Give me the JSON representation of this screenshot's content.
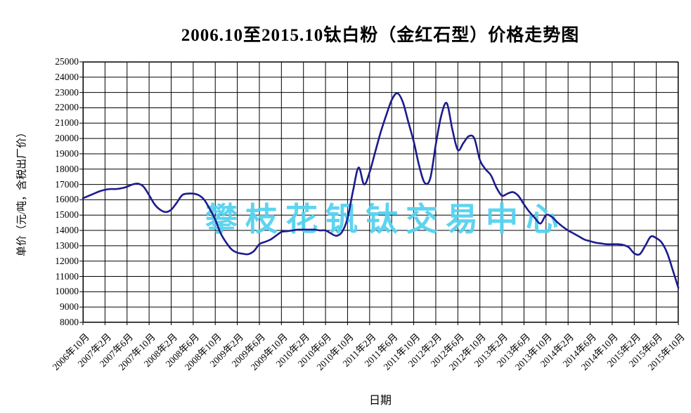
{
  "title": "2006.10至2015.10钛白粉（金红石型）价格走势图",
  "watermark_text": "攀枝花钒钛交易中心",
  "colors": {
    "line": "#1b1b8e",
    "grid": "#000000",
    "watermark": "#55d2f0",
    "background": "#ffffff",
    "text": "#000000"
  },
  "chart_data": {
    "type": "line",
    "title": "2006.10至2015.10钛白粉（金红石型）价格走势图",
    "xlabel": "日期",
    "ylabel": "单价（元/吨，含税出厂价）",
    "ylim": [
      8000,
      25000
    ],
    "y_tick_step": 1000,
    "y_tick_labels": [
      "25000",
      "24000",
      "23000",
      "22000",
      "21000",
      "20000",
      "19000",
      "18000",
      "17000",
      "16000",
      "15000",
      "14000",
      "13000",
      "12000",
      "11000",
      "10000",
      "9000",
      "8000"
    ],
    "x_tick_labels": [
      "2006年10月",
      "2007年2月",
      "2007年6月",
      "2007年10月",
      "2008年2月",
      "2008年6月",
      "2008年10月",
      "2009年2月",
      "2009年6月",
      "2009年10月",
      "2010年2月",
      "2010年6月",
      "2010年10月",
      "2011年2月",
      "2011年6月",
      "2011年10月",
      "2012年2月",
      "2012年6月",
      "2012年10月",
      "2013年2月",
      "2013年6月",
      "2013年10月",
      "2014年2月",
      "2014年6月",
      "2014年10月",
      "2015年2月",
      "2015年6月",
      "2015年10月"
    ],
    "x_tick_interval_months": 4,
    "grid": true,
    "legend_position": "none",
    "series": [
      {
        "name": "钛白粉（金红石型）价格",
        "start_month": "2006-10",
        "end_month": "2015-10",
        "resolution": "monthly",
        "values": [
          16100,
          16250,
          16400,
          16550,
          16650,
          16700,
          16700,
          16750,
          16850,
          17000,
          17050,
          16850,
          16300,
          15700,
          15350,
          15200,
          15350,
          15800,
          16300,
          16400,
          16400,
          16300,
          16000,
          15400,
          14700,
          13800,
          13200,
          12750,
          12550,
          12480,
          12450,
          12650,
          13100,
          13250,
          13400,
          13650,
          13900,
          13950,
          14000,
          14050,
          14050,
          14050,
          14050,
          14000,
          14000,
          13800,
          13650,
          13900,
          14800,
          16600,
          18100,
          17000,
          17800,
          19100,
          20400,
          21500,
          22500,
          22950,
          22400,
          21100,
          19800,
          18200,
          17100,
          17400,
          19600,
          21500,
          22300,
          20600,
          19250,
          19700,
          20150,
          20000,
          18600,
          18000,
          17600,
          16800,
          16270,
          16400,
          16500,
          16250,
          15700,
          15200,
          14800,
          14450,
          15000,
          14900,
          14550,
          14250,
          14000,
          13800,
          13600,
          13400,
          13300,
          13200,
          13150,
          13100,
          13100,
          13100,
          13050,
          12900,
          12500,
          12450,
          13000,
          13600,
          13500,
          13200,
          12500,
          11400,
          10250
        ]
      }
    ],
    "annotations": {
      "peak_value": 22950,
      "peak_month": "2011-07",
      "second_peak_value": 22300,
      "second_peak_month": "2012-04",
      "min_value": 10250,
      "min_month": "2015-10"
    }
  }
}
